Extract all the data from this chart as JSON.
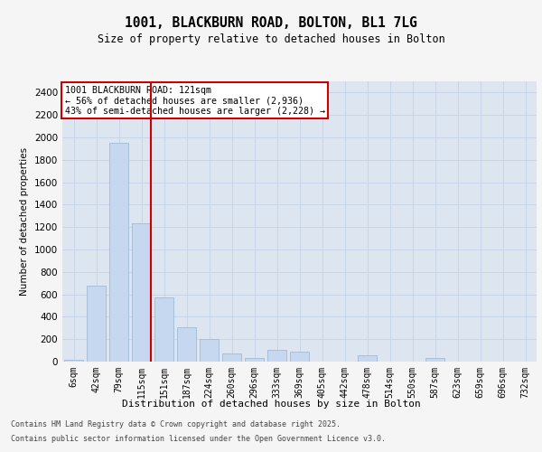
{
  "title_line1": "1001, BLACKBURN ROAD, BOLTON, BL1 7LG",
  "title_line2": "Size of property relative to detached houses in Bolton",
  "xlabel": "Distribution of detached houses by size in Bolton",
  "ylabel": "Number of detached properties",
  "categories": [
    "6sqm",
    "42sqm",
    "79sqm",
    "115sqm",
    "151sqm",
    "187sqm",
    "224sqm",
    "260sqm",
    "296sqm",
    "333sqm",
    "369sqm",
    "405sqm",
    "442sqm",
    "478sqm",
    "514sqm",
    "550sqm",
    "587sqm",
    "623sqm",
    "659sqm",
    "696sqm",
    "732sqm"
  ],
  "values": [
    18,
    675,
    1950,
    1230,
    570,
    305,
    200,
    75,
    35,
    105,
    85,
    0,
    0,
    55,
    0,
    0,
    30,
    0,
    0,
    0,
    0
  ],
  "bar_color": "#c5d8f0",
  "bar_edge_color": "#a0bcd8",
  "vline_color": "#cc0000",
  "vline_x": 3.43,
  "annotation_text": "1001 BLACKBURN ROAD: 121sqm\n← 56% of detached houses are smaller (2,936)\n43% of semi-detached houses are larger (2,228) →",
  "annotation_box_facecolor": "#ffffff",
  "annotation_box_edgecolor": "#cc0000",
  "ylim": [
    0,
    2500
  ],
  "yticks": [
    0,
    200,
    400,
    600,
    800,
    1000,
    1200,
    1400,
    1600,
    1800,
    2000,
    2200,
    2400
  ],
  "grid_color": "#c8d4e8",
  "bg_color": "#dde5f0",
  "fig_bg_color": "#f5f5f5",
  "footer_line1": "Contains HM Land Registry data © Crown copyright and database right 2025.",
  "footer_line2": "Contains public sector information licensed under the Open Government Licence v3.0."
}
